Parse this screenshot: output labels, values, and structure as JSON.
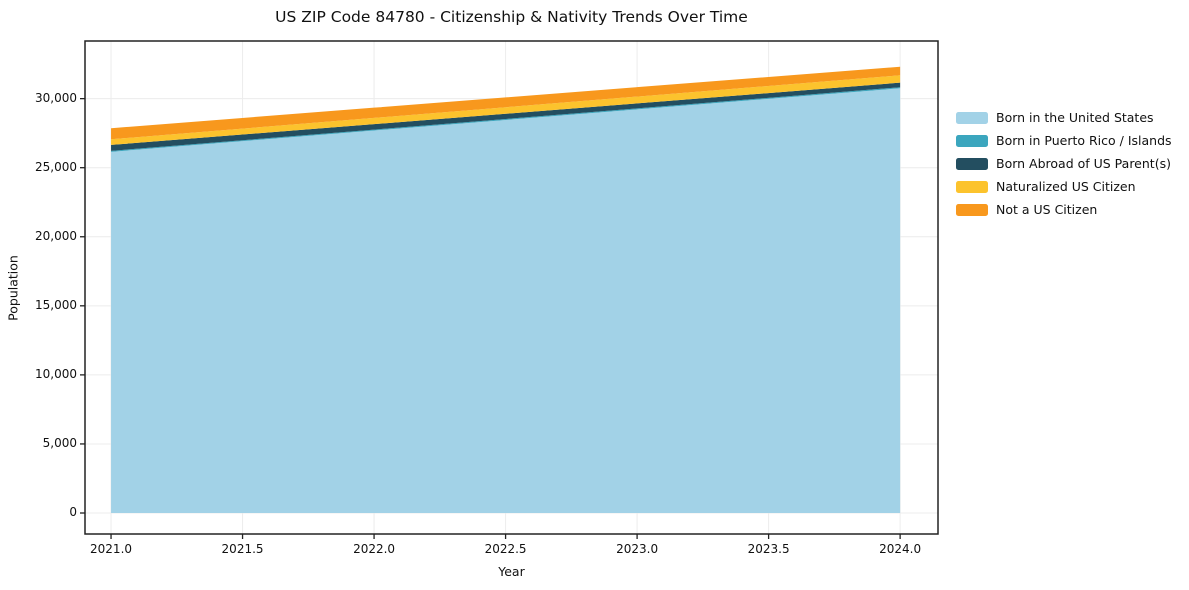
{
  "figure": {
    "title": "US ZIP Code 84780 - Citizenship & Nativity Trends Over Time"
  },
  "chart_data": {
    "type": "area",
    "stacked": true,
    "title": "US ZIP Code 84780 - Citizenship & Nativity Trends Over Time",
    "xlabel": "Year",
    "ylabel": "Population",
    "x": [
      2021,
      2022,
      2023,
      2024
    ],
    "series": [
      {
        "name": "Born in the United States",
        "color": "#a2d2e7",
        "values": [
          26150,
          27690,
          29220,
          30750
        ]
      },
      {
        "name": "Born in Puerto Rico / Islands",
        "color": "#3ba6be",
        "values": [
          70,
          70,
          75,
          75
        ]
      },
      {
        "name": "Born Abroad of US Parent(s)",
        "color": "#234e60",
        "values": [
          430,
          395,
          360,
          330
        ]
      },
      {
        "name": "Naturalized US Citizen",
        "color": "#fcc32d",
        "values": [
          410,
          450,
          495,
          535
        ]
      },
      {
        "name": "Not a US Citizen",
        "color": "#f8981d",
        "values": [
          800,
          740,
          680,
          620
        ]
      }
    ],
    "totals": [
      27860,
      29345,
      30830,
      32310
    ],
    "xlim": [
      2020.901,
      2024.144
    ],
    "ylim": [
      -1520,
      34173
    ],
    "xticks": {
      "values": [
        2021.0,
        2021.5,
        2022.0,
        2022.5,
        2023.0,
        2023.5,
        2024.0
      ],
      "labels": [
        "2021.0",
        "2021.5",
        "2022.0",
        "2022.5",
        "2023.0",
        "2023.5",
        "2024.0"
      ]
    },
    "yticks": {
      "values": [
        0,
        5000,
        10000,
        15000,
        20000,
        25000,
        30000
      ],
      "labels": [
        "0",
        "5,000",
        "10,000",
        "15,000",
        "20,000",
        "25,000",
        "30,000"
      ]
    },
    "grid": true,
    "grid_color": "#ececec",
    "axes_color": "#222222",
    "legend_position": "right-outside"
  }
}
